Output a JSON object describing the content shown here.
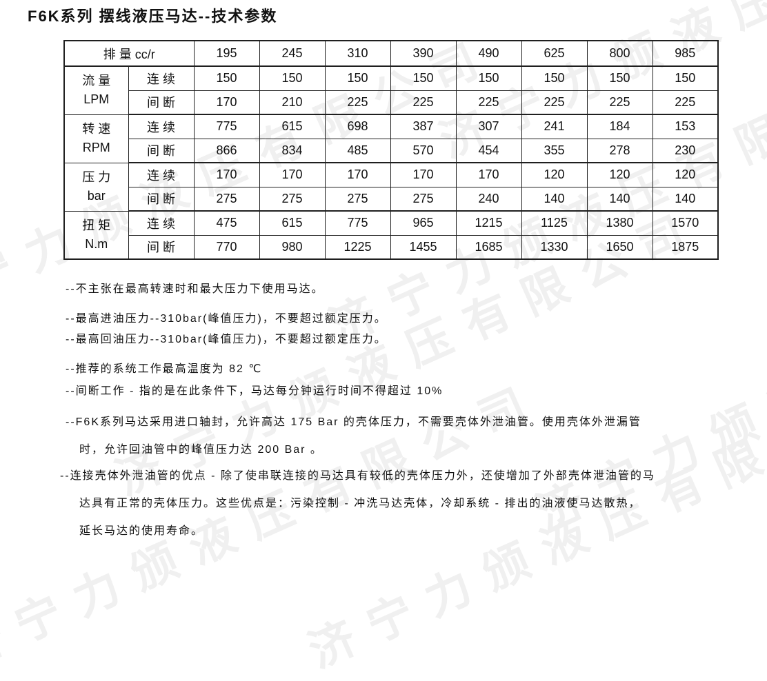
{
  "title": "F6K系列 摆线液压马达--技术参数",
  "watermark": {
    "text": "济宁力颁液压有限公司",
    "color": "#f0f0f0"
  },
  "table": {
    "header_label": "排 量 cc/r",
    "displacements": [
      "195",
      "245",
      "310",
      "390",
      "490",
      "625",
      "800",
      "985"
    ],
    "groups": [
      {
        "name": "流 量",
        "unit": "LPM",
        "rows": [
          {
            "mode": "连 续",
            "values": [
              "150",
              "150",
              "150",
              "150",
              "150",
              "150",
              "150",
              "150"
            ]
          },
          {
            "mode": "间 断",
            "values": [
              "170",
              "210",
              "225",
              "225",
              "225",
              "225",
              "225",
              "225"
            ]
          }
        ]
      },
      {
        "name": "转 速",
        "unit": "RPM",
        "rows": [
          {
            "mode": "连 续",
            "values": [
              "775",
              "615",
              "698",
              "387",
              "307",
              "241",
              "184",
              "153"
            ]
          },
          {
            "mode": "间 断",
            "values": [
              "866",
              "834",
              "485",
              "570",
              "454",
              "355",
              "278",
              "230"
            ]
          }
        ]
      },
      {
        "name": "压 力",
        "unit": "bar",
        "rows": [
          {
            "mode": "连 续",
            "values": [
              "170",
              "170",
              "170",
              "170",
              "170",
              "120",
              "120",
              "120"
            ]
          },
          {
            "mode": "间 断",
            "values": [
              "275",
              "275",
              "275",
              "275",
              "240",
              "140",
              "140",
              "140"
            ]
          }
        ]
      },
      {
        "name": "扭 矩",
        "unit": "N.m",
        "rows": [
          {
            "mode": "连 续",
            "values": [
              "475",
              "615",
              "775",
              "965",
              "1215",
              "1125",
              "1380",
              "1570"
            ]
          },
          {
            "mode": "间 断",
            "values": [
              "770",
              "980",
              "1225",
              "1455",
              "1685",
              "1330",
              "1650",
              "1875"
            ]
          }
        ]
      }
    ]
  },
  "notes": [
    {
      "lines": [
        "--不主张在最高转速时和最大压力下使用马达。"
      ]
    },
    {
      "lines": [
        "--最高进油压力--310bar(峰值压力)，不要超过额定压力。"
      ]
    },
    {
      "lines": [
        "--最高回油压力--310bar(峰值压力)，不要超过额定压力。"
      ]
    },
    {
      "lines": [
        "--推荐的系统工作最高温度为 82 ℃"
      ]
    },
    {
      "lines": [
        "--间断工作 - 指的是在此条件下，马达每分钟运行时间不得超过 10%"
      ]
    },
    {
      "lines": [
        "--F6K系列马达采用进口轴封，允许高达 175 Bar 的壳体压力，不需要壳体外泄油管。使用壳体外泄漏管",
        "时，允许回油管中的峰值压力达 200 Bar 。"
      ]
    },
    {
      "lines": [
        "--连接壳体外泄油管的优点 - 除了使串联连接的马达具有较低的壳体压力外，还使增加了外部壳体泄油管的马",
        "达具有正常的壳体压力。这些优点是：污染控制 - 冲洗马达壳体，冷却系统 - 排出的油液使马达散热，",
        "延长马达的使用寿命。"
      ]
    }
  ]
}
